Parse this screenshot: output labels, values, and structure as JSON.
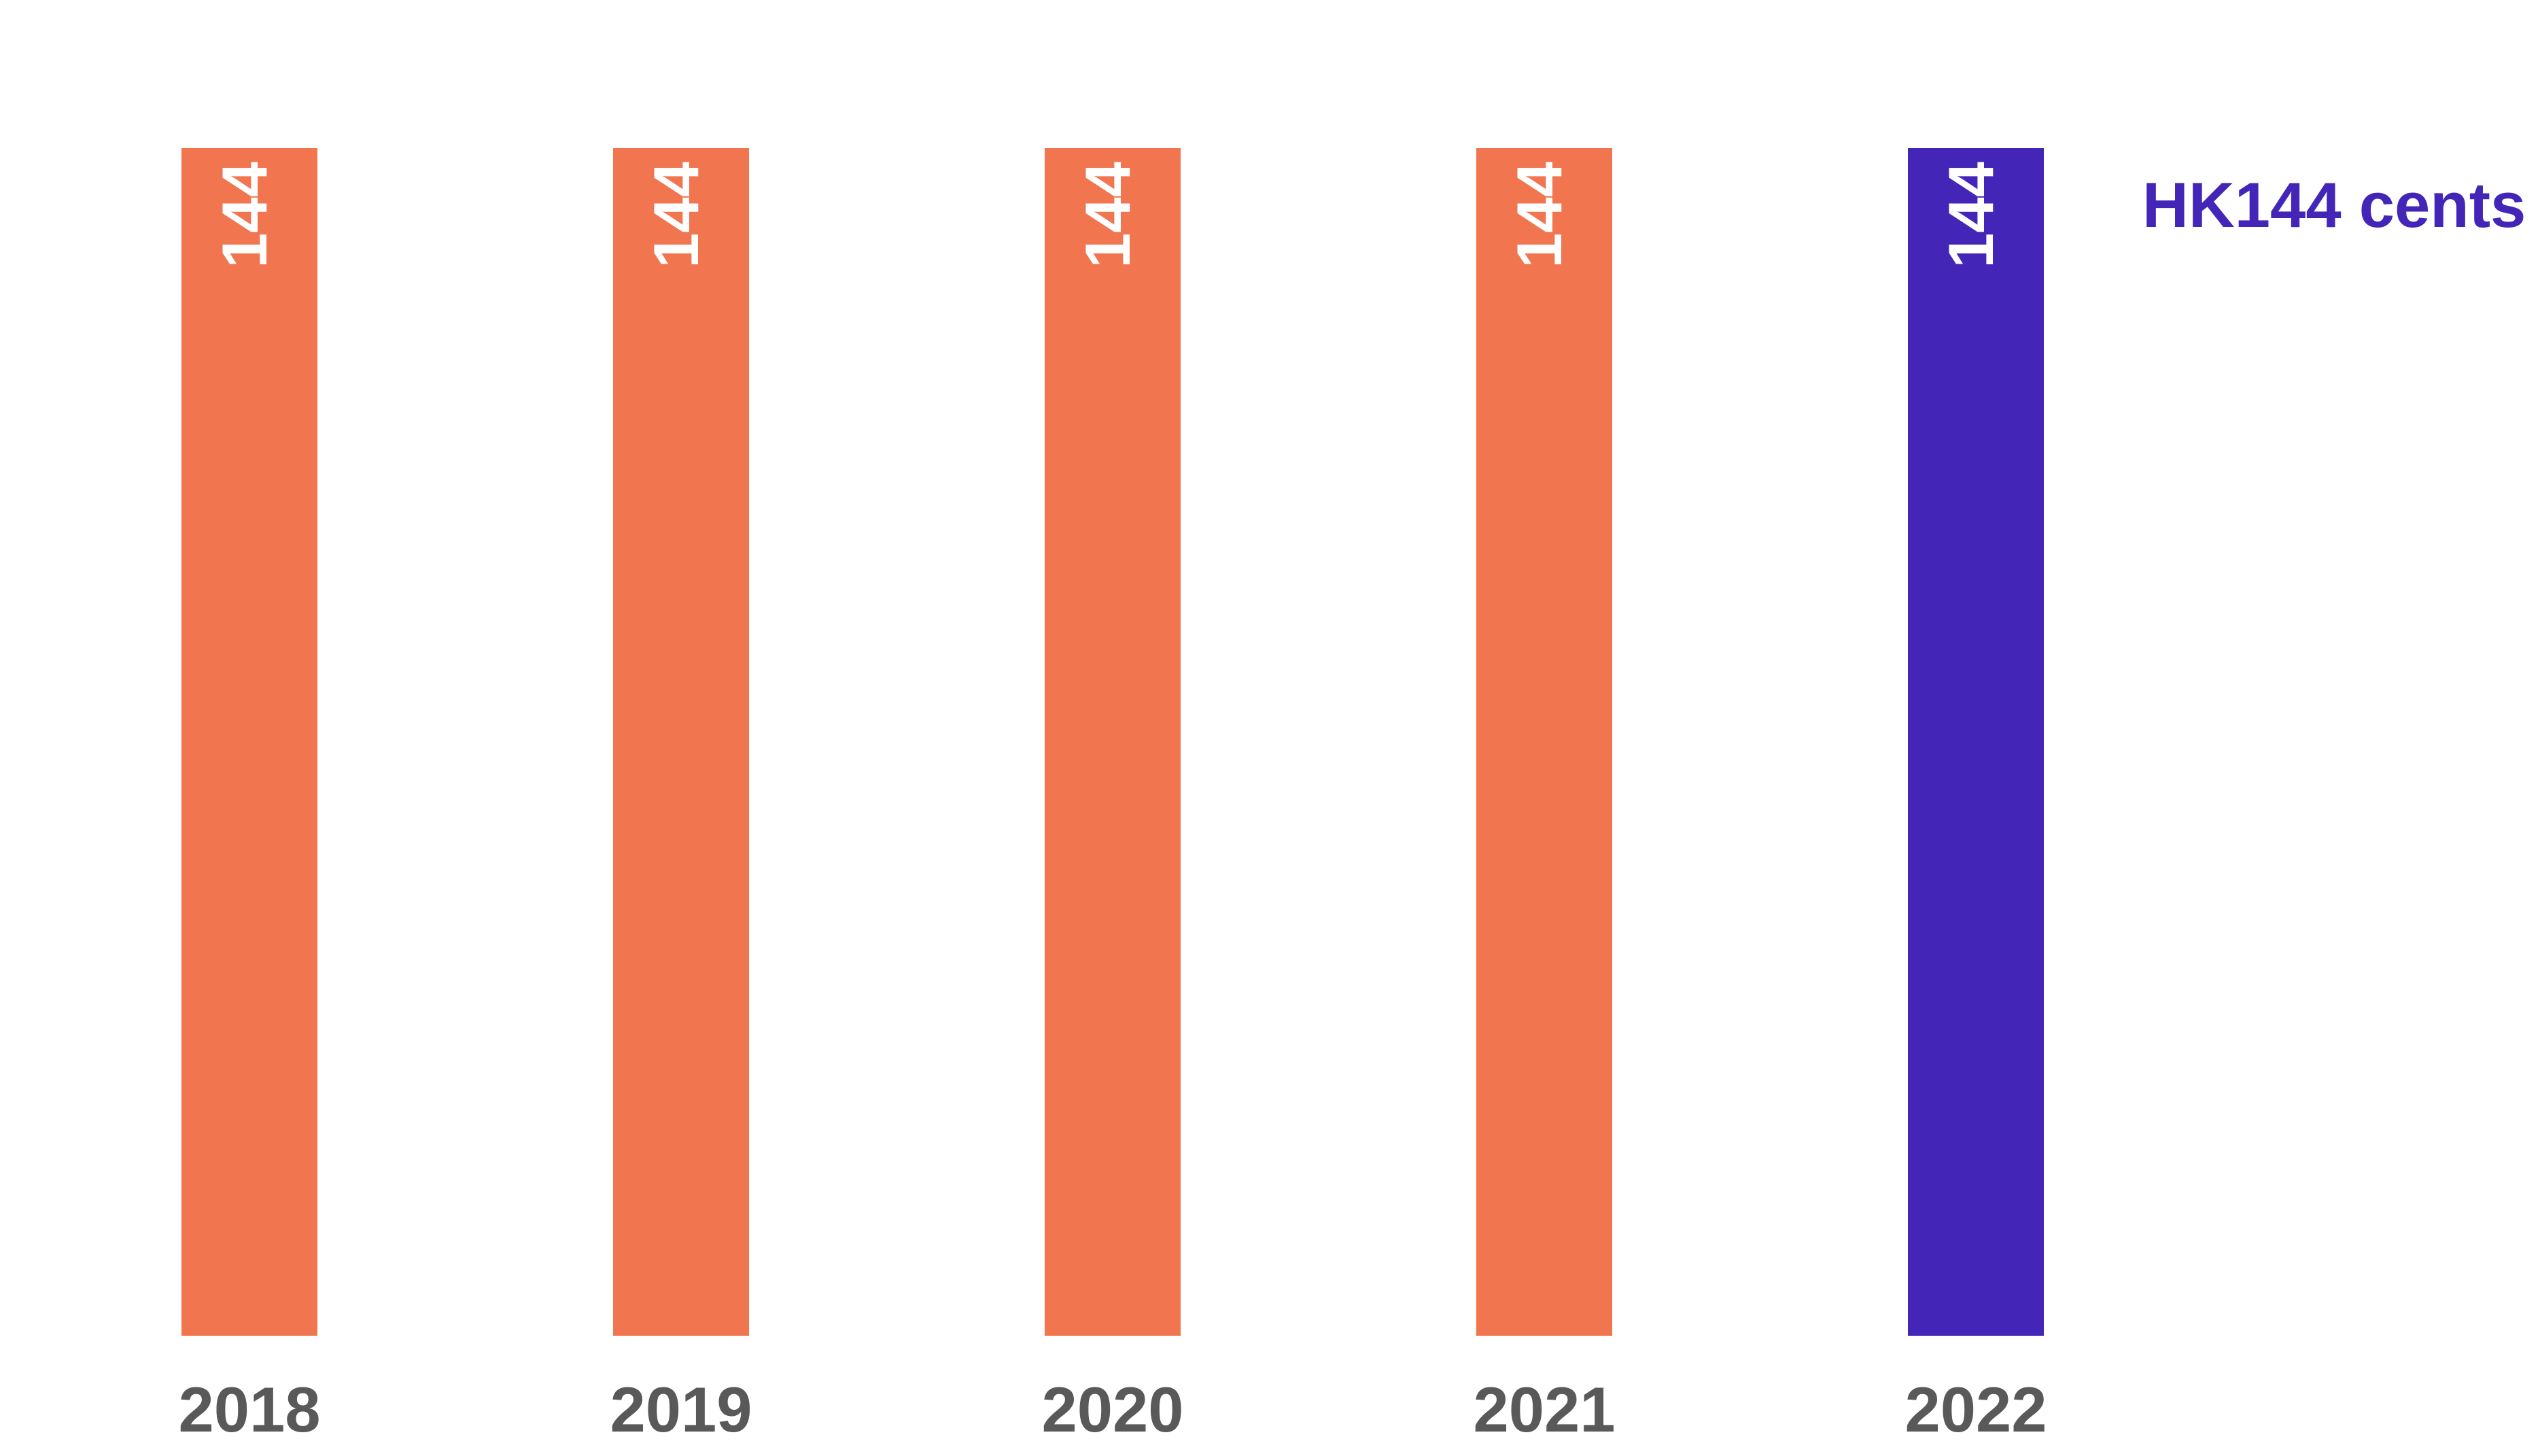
{
  "chart_data": {
    "type": "bar",
    "categories": [
      "2018",
      "2019",
      "2020",
      "2021",
      "2022"
    ],
    "values": [
      144,
      144,
      144,
      144,
      144
    ],
    "data_labels": [
      "144",
      "144",
      "144",
      "144",
      "144"
    ],
    "ylim": [
      0,
      144
    ],
    "grid": false,
    "legend": "none",
    "highlight_index": 4,
    "annotation": "HK144 cents",
    "colors": {
      "bar": "#F1764F",
      "highlight": "#4325B8",
      "bar_label": "#FFFFFF",
      "tick_label": "#595959",
      "annotation": "#4325B8"
    }
  }
}
